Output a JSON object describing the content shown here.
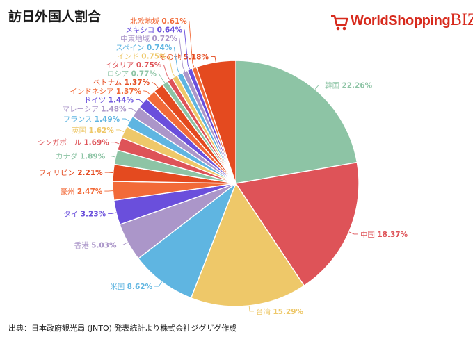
{
  "page": {
    "title": "訪日外国人割合",
    "source": "出典：日本政府観光局 (JNTO) 発表統計より株式会社ジグザグ作成"
  },
  "logo": {
    "part1": "World",
    "part2": "Shopping",
    "part3": "BIZ",
    "color": "#d72a1d",
    "icon": "shopping-cart-icon"
  },
  "chart_data": {
    "type": "pie",
    "title": "訪日外国人割合",
    "unit": "%",
    "slices": [
      {
        "label": "韓国",
        "value": 22.26,
        "color": "#8dc4a5",
        "pct": "22.26%"
      },
      {
        "label": "中国",
        "value": 18.37,
        "color": "#de5358",
        "pct": "18.37%"
      },
      {
        "label": "台湾",
        "value": 15.29,
        "color": "#eec869",
        "pct": "15.29%"
      },
      {
        "label": "米国",
        "value": 8.62,
        "color": "#5fb5e1",
        "pct": "8.62%"
      },
      {
        "label": "香港",
        "value": 5.03,
        "color": "#ab96c9",
        "pct": "5.03%"
      },
      {
        "label": "タイ",
        "value": 3.23,
        "color": "#6a4fdc",
        "pct": "3.23%"
      },
      {
        "label": "豪州",
        "value": 2.47,
        "color": "#f26a38",
        "pct": "2.47%"
      },
      {
        "label": "フィリピン",
        "value": 2.21,
        "color": "#e44a1f",
        "pct": "2.21%"
      },
      {
        "label": "カナダ",
        "value": 1.89,
        "color": "#8dc4a5",
        "pct": "1.89%"
      },
      {
        "label": "シンガポール",
        "value": 1.69,
        "color": "#de5358",
        "pct": "1.69%"
      },
      {
        "label": "英国",
        "value": 1.62,
        "color": "#eec869",
        "pct": "1.62%"
      },
      {
        "label": "フランス",
        "value": 1.49,
        "color": "#5fb5e1",
        "pct": "1.49%"
      },
      {
        "label": "マレーシア",
        "value": 1.48,
        "color": "#ab96c9",
        "pct": "1.48%"
      },
      {
        "label": "ドイツ",
        "value": 1.44,
        "color": "#6a4fdc",
        "pct": "1.44%"
      },
      {
        "label": "インドネシア",
        "value": 1.37,
        "color": "#f26a38",
        "pct": "1.37%"
      },
      {
        "label": "ベトナム",
        "value": 1.37,
        "color": "#e44a1f",
        "pct": "1.37%"
      },
      {
        "label": "ロシア",
        "value": 0.77,
        "color": "#8dc4a5",
        "pct": "0.77%"
      },
      {
        "label": "イタリア",
        "value": 0.75,
        "color": "#de5358",
        "pct": "0.75%"
      },
      {
        "label": "インド",
        "value": 0.75,
        "color": "#eec869",
        "pct": "0.75%"
      },
      {
        "label": "スペイン",
        "value": 0.74,
        "color": "#5fb5e1",
        "pct": "0.74%"
      },
      {
        "label": "中東地域",
        "value": 0.72,
        "color": "#ab96c9",
        "pct": "0.72%"
      },
      {
        "label": "メキシコ",
        "value": 0.64,
        "color": "#6a4fdc",
        "pct": "0.64%"
      },
      {
        "label": "北欧地域",
        "value": 0.61,
        "color": "#f26a38",
        "pct": "0.61%"
      },
      {
        "label": "その他",
        "value": 5.18,
        "color": "#e44a1f",
        "pct": "5.18%"
      }
    ]
  }
}
